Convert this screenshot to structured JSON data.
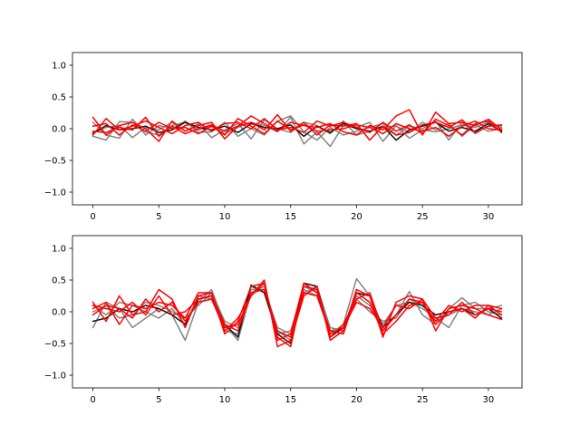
{
  "chart_data": [
    {
      "type": "line",
      "title": "",
      "xlabel": "",
      "ylabel": "",
      "xlim": [
        -1.55,
        32.55
      ],
      "ylim": [
        -1.2,
        1.2
      ],
      "xticks": [
        0,
        5,
        10,
        15,
        20,
        25,
        30
      ],
      "yticks": [
        -1.0,
        -0.5,
        0.0,
        0.5,
        1.0
      ],
      "xtick_labels": [
        "0",
        "5",
        "10",
        "15",
        "20",
        "25",
        "30"
      ],
      "ytick_labels": [
        "−1.0",
        "−0.5",
        "0.0",
        "0.5",
        "1.0"
      ],
      "grid": false,
      "legend": "none",
      "x": [
        0,
        1,
        2,
        3,
        4,
        5,
        6,
        7,
        8,
        9,
        10,
        11,
        12,
        13,
        14,
        15,
        16,
        17,
        18,
        19,
        20,
        21,
        22,
        23,
        24,
        25,
        26,
        27,
        28,
        29,
        30,
        31
      ],
      "series": [
        {
          "color": "#777777",
          "values": [
            -0.12,
            -0.18,
            0.11,
            0.1,
            -0.05,
            -0.1,
            0.05,
            0.1,
            -0.02,
            0.05,
            -0.08,
            0.02,
            0.1,
            0.05,
            -0.05,
            0.18,
            -0.24,
            -0.05,
            -0.28,
            0.05,
            0.02,
            0.1,
            -0.2,
            0.05,
            -0.15,
            -0.02,
            -0.05,
            0.0,
            0.06,
            0.02,
            0.1,
            0.02
          ]
        },
        {
          "color": "#777777",
          "values": [
            0.1,
            -0.1,
            -0.15,
            0.15,
            -0.1,
            0.05,
            0.0,
            0.12,
            -0.06,
            -0.05,
            0.1,
            -0.12,
            0.0,
            -0.1,
            0.12,
            0.2,
            -0.05,
            -0.18,
            0.02,
            -0.1,
            -0.04,
            0.02,
            0.08,
            -0.1,
            0.04,
            0.0,
            0.12,
            -0.18,
            0.1,
            -0.08,
            0.05,
            0.05
          ]
        },
        {
          "color": "#777777",
          "values": [
            -0.06,
            0.02,
            0.05,
            -0.14,
            0.02,
            -0.02,
            0.1,
            -0.04,
            0.08,
            -0.14,
            -0.02,
            0.08,
            -0.16,
            0.14,
            0.0,
            -0.06,
            0.1,
            0.05,
            -0.08,
            0.12,
            -0.1,
            -0.04,
            0.02,
            0.04,
            -0.06,
            0.1,
            -0.02,
            0.08,
            -0.12,
            0.06,
            -0.04,
            0.0
          ]
        },
        {
          "color": "#111111",
          "values": [
            -0.08,
            0.05,
            -0.02,
            0.0,
            0.04,
            -0.06,
            -0.02,
            0.1,
            0.02,
            -0.02,
            0.04,
            -0.06,
            0.08,
            0.02,
            0.0,
            0.06,
            -0.12,
            0.04,
            -0.06,
            0.08,
            0.0,
            -0.04,
            0.04,
            -0.18,
            -0.02,
            0.04,
            0.1,
            -0.04,
            0.02,
            -0.04,
            0.08,
            -0.04
          ]
        },
        {
          "color": "#ff0000",
          "values": [
            0.18,
            -0.1,
            0.05,
            0.1,
            0.0,
            -0.2,
            0.12,
            -0.04,
            0.05,
            0.1,
            -0.16,
            0.04,
            0.2,
            0.08,
            -0.04,
            0.1,
            0.05,
            0.02,
            0.08,
            -0.05,
            -0.1,
            0.05,
            -0.02,
            0.2,
            0.3,
            -0.1,
            0.26,
            0.08,
            0.1,
            0.05,
            0.15,
            -0.02
          ]
        },
        {
          "color": "#ff0000",
          "values": [
            -0.1,
            0.16,
            -0.02,
            0.04,
            0.12,
            0.02,
            -0.08,
            0.05,
            0.1,
            -0.04,
            0.08,
            0.1,
            0.0,
            0.16,
            -0.02,
            0.02,
            -0.06,
            0.12,
            0.04,
            0.1,
            0.02,
            -0.06,
            0.1,
            -0.04,
            0.06,
            -0.08,
            0.15,
            0.05,
            -0.1,
            0.08,
            0.12,
            -0.06
          ]
        },
        {
          "color": "#ff0000",
          "values": [
            -0.04,
            -0.06,
            0.02,
            -0.02,
            0.18,
            -0.12,
            0.04,
            -0.08,
            0.0,
            0.06,
            -0.04,
            0.04,
            0.1,
            -0.02,
            0.22,
            -0.04,
            0.1,
            -0.1,
            0.06,
            0.04,
            0.08,
            -0.18,
            0.04,
            -0.1,
            -0.06,
            0.06,
            0.1,
            0.02,
            0.14,
            -0.06,
            0.04,
            0.06
          ]
        },
        {
          "color": "#ff0000",
          "values": [
            0.04,
            0.08,
            -0.1,
            0.06,
            -0.04,
            0.1,
            0.0,
            0.02,
            -0.08,
            0.04,
            -0.1,
            0.16,
            0.04,
            -0.08,
            0.12,
            -0.02,
            0.06,
            -0.04,
            -0.02,
            0.0,
            0.06,
            0.02,
            -0.08,
            0.08,
            0.0,
            -0.04,
            0.02,
            -0.12,
            0.04,
            0.12,
            0.0,
            -0.02
          ]
        }
      ]
    },
    {
      "type": "line",
      "title": "",
      "xlabel": "",
      "ylabel": "",
      "xlim": [
        -1.55,
        32.55
      ],
      "ylim": [
        -1.2,
        1.2
      ],
      "xticks": [
        0,
        5,
        10,
        15,
        20,
        25,
        30
      ],
      "yticks": [
        -1.0,
        -0.5,
        0.0,
        0.5,
        1.0
      ],
      "xtick_labels": [
        "0",
        "5",
        "10",
        "15",
        "20",
        "25",
        "30"
      ],
      "ytick_labels": [
        "−1.0",
        "−0.5",
        "0.0",
        "0.5",
        "1.0"
      ],
      "grid": false,
      "legend": "none",
      "x": [
        0,
        1,
        2,
        3,
        4,
        5,
        6,
        7,
        8,
        9,
        10,
        11,
        12,
        13,
        14,
        15,
        16,
        17,
        18,
        19,
        20,
        21,
        22,
        23,
        24,
        25,
        26,
        27,
        28,
        29,
        30,
        31
      ],
      "series": [
        {
          "color": "#777777",
          "values": [
            -0.25,
            0.15,
            0.05,
            -0.25,
            -0.1,
            0.05,
            -0.05,
            -0.45,
            0.15,
            0.35,
            -0.2,
            -0.45,
            0.3,
            0.4,
            -0.3,
            -0.45,
            0.4,
            0.3,
            -0.35,
            -0.2,
            0.52,
            0.25,
            -0.3,
            -0.05,
            0.32,
            -0.05,
            -0.2,
            0.05,
            0.22,
            0.05,
            0.05,
            0.1
          ]
        },
        {
          "color": "#777777",
          "values": [
            0.1,
            -0.05,
            0.15,
            0.1,
            0.0,
            -0.1,
            0.05,
            -0.2,
            0.25,
            0.2,
            -0.3,
            -0.35,
            0.4,
            0.3,
            -0.35,
            -0.3,
            0.35,
            0.25,
            -0.3,
            -0.25,
            0.25,
            0.1,
            -0.2,
            0.1,
            0.15,
            0.05,
            -0.1,
            -0.25,
            0.1,
            0.15,
            0.0,
            -0.05
          ]
        },
        {
          "color": "#777777",
          "values": [
            0.0,
            0.1,
            -0.1,
            -0.05,
            0.15,
            0.1,
            0.0,
            -0.1,
            0.1,
            0.3,
            -0.15,
            -0.25,
            0.35,
            0.35,
            -0.25,
            -0.35,
            0.3,
            0.4,
            -0.25,
            -0.3,
            0.2,
            0.0,
            -0.15,
            -0.1,
            0.2,
            0.1,
            -0.15,
            -0.05,
            0.05,
            0.0,
            -0.05,
            0.05
          ]
        },
        {
          "color": "#111111",
          "values": [
            -0.15,
            -0.1,
            0.05,
            0.0,
            0.1,
            0.05,
            -0.05,
            -0.2,
            0.2,
            0.25,
            -0.2,
            -0.4,
            0.42,
            0.3,
            -0.35,
            -0.5,
            0.45,
            0.4,
            -0.4,
            -0.25,
            0.3,
            0.25,
            -0.25,
            -0.05,
            0.15,
            0.1,
            -0.05,
            0.0,
            0.05,
            -0.05,
            0.05,
            -0.1
          ]
        },
        {
          "color": "#ff0000",
          "values": [
            0.15,
            -0.15,
            0.25,
            -0.05,
            0.0,
            0.35,
            0.2,
            -0.25,
            0.25,
            0.3,
            -0.3,
            -0.1,
            0.25,
            0.5,
            -0.55,
            -0.45,
            0.25,
            0.4,
            -0.45,
            -0.3,
            0.35,
            0.25,
            -0.4,
            0.15,
            0.25,
            0.2,
            -0.3,
            0.05,
            0.1,
            0.05,
            -0.05,
            -0.12
          ]
        },
        {
          "color": "#ff0000",
          "values": [
            0.05,
            0.15,
            -0.2,
            0.1,
            0.05,
            0.15,
            0.1,
            -0.1,
            0.3,
            0.3,
            -0.35,
            -0.15,
            0.4,
            0.45,
            -0.4,
            -0.55,
            0.4,
            0.35,
            -0.4,
            -0.2,
            0.2,
            0.3,
            -0.3,
            -0.05,
            0.2,
            0.15,
            -0.15,
            0.1,
            0.0,
            0.1,
            0.1,
            -0.05
          ]
        },
        {
          "color": "#ff0000",
          "values": [
            0.1,
            0.05,
            0.0,
            0.15,
            -0.05,
            0.25,
            -0.05,
            0.0,
            0.2,
            0.25,
            -0.2,
            -0.3,
            0.3,
            0.35,
            -0.3,
            -0.4,
            0.3,
            0.25,
            -0.35,
            -0.25,
            0.15,
            0.05,
            -0.25,
            0.1,
            0.05,
            0.2,
            -0.1,
            -0.05,
            0.15,
            -0.05,
            0.05,
            0.0
          ]
        },
        {
          "color": "#ff0000",
          "values": [
            -0.05,
            0.1,
            0.05,
            -0.1,
            0.2,
            0.0,
            0.15,
            -0.15,
            0.15,
            0.2,
            -0.25,
            -0.2,
            0.25,
            0.45,
            -0.45,
            -0.35,
            0.45,
            0.3,
            -0.3,
            -0.35,
            0.3,
            0.15,
            -0.35,
            -0.15,
            0.1,
            0.15,
            -0.2,
            0.0,
            0.05,
            -0.1,
            0.1,
            0.05
          ]
        }
      ]
    }
  ]
}
